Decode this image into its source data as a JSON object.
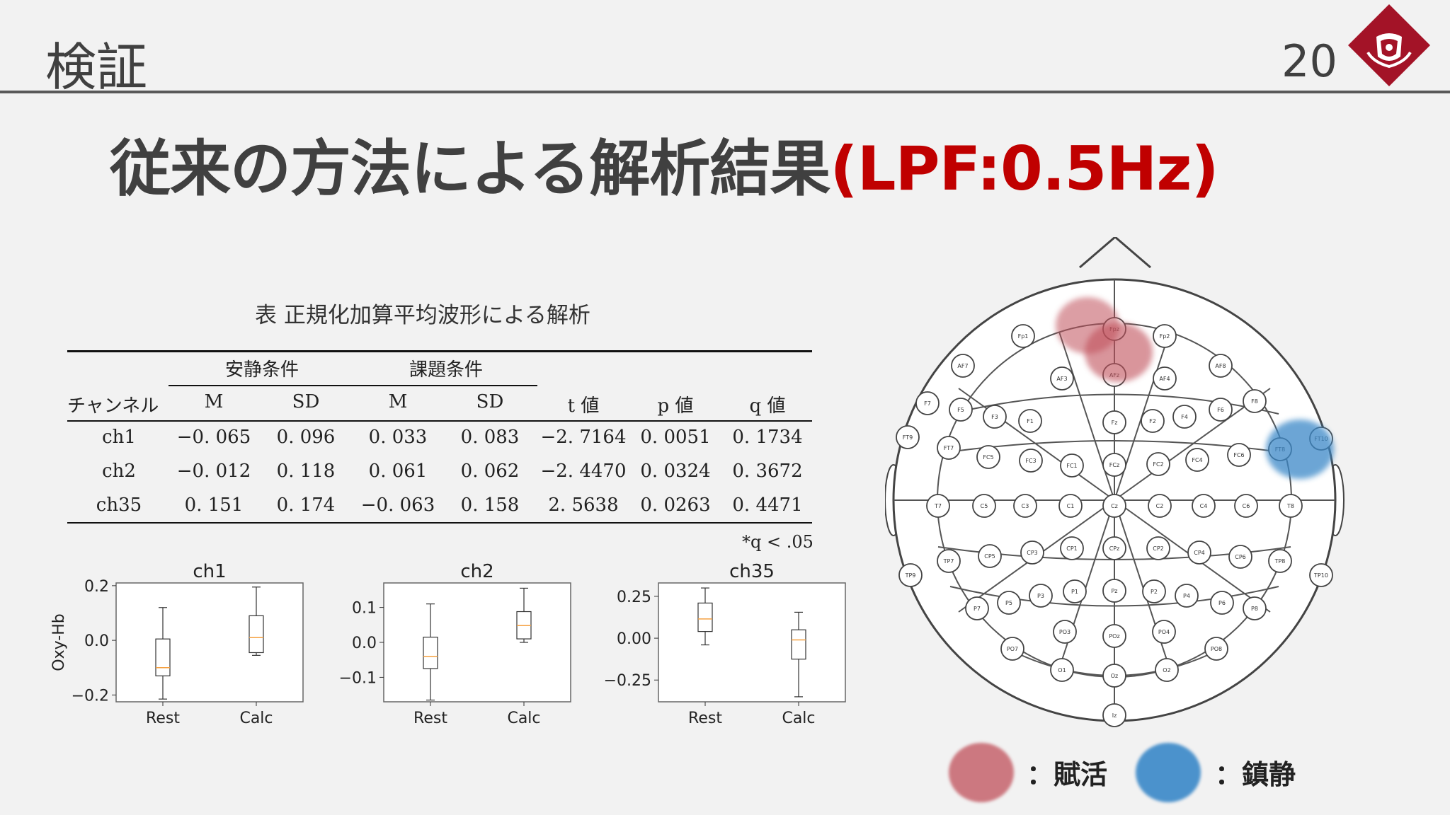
{
  "slide": {
    "section_title": "検証",
    "page_number": "20",
    "title_main": "従来の方法による解析結果",
    "title_accent": "(LPF:0.5Hz)"
  },
  "colors": {
    "accent": "#c00000",
    "logo": "#a31327",
    "activation": "#c0505a",
    "sedation": "#3a88c8"
  },
  "table": {
    "caption": "表 正規化加算平均波形による解析",
    "group_headers": [
      "安静条件",
      "課題条件"
    ],
    "columns": [
      "チャンネル",
      "M",
      "SD",
      "M",
      "SD",
      "t 値",
      "p 値",
      "q 値"
    ],
    "rows": [
      [
        "ch1",
        "−0. 065",
        "0. 096",
        "0. 033",
        "0. 083",
        "−2. 7164",
        "0. 0051",
        "0. 1734"
      ],
      [
        "ch2",
        "−0. 012",
        "0. 118",
        "0. 061",
        "0. 062",
        "−2. 4470",
        "0. 0324",
        "0. 3672"
      ],
      [
        "ch35",
        "0. 151",
        "0. 174",
        "−0. 063",
        "0. 158",
        "2. 5638",
        "0. 0263",
        "0. 4471"
      ]
    ],
    "footnote": "*q < .05"
  },
  "chart_data": [
    {
      "type": "box",
      "title": "ch1",
      "ylabel": "Oxy-Hb",
      "categories": [
        "Rest",
        "Calc"
      ],
      "yticks": [
        "0.2",
        "0.0",
        "−0.2"
      ],
      "ytick_values": [
        0.2,
        0.0,
        -0.2
      ],
      "ylim": [
        -0.225,
        0.21
      ],
      "boxes": [
        {
          "min": -0.215,
          "q1": -0.13,
          "median": -0.1,
          "q3": 0.005,
          "max": 0.12
        },
        {
          "min": -0.055,
          "q1": -0.045,
          "median": 0.01,
          "q3": 0.09,
          "max": 0.195
        }
      ]
    },
    {
      "type": "box",
      "title": "ch2",
      "ylabel": "",
      "categories": [
        "Rest",
        "Calc"
      ],
      "yticks": [
        "0.1",
        "0.0",
        "−0.1"
      ],
      "ytick_values": [
        0.1,
        0.0,
        -0.1
      ],
      "ylim": [
        -0.17,
        0.17
      ],
      "boxes": [
        {
          "min": -0.165,
          "q1": -0.075,
          "median": -0.04,
          "q3": 0.015,
          "max": 0.11
        },
        {
          "min": 0.0,
          "q1": 0.01,
          "median": 0.048,
          "q3": 0.088,
          "max": 0.155
        }
      ]
    },
    {
      "type": "box",
      "title": "ch35",
      "ylabel": "",
      "categories": [
        "Rest",
        "Calc"
      ],
      "yticks": [
        "0.25",
        "0.00",
        "−0.25"
      ],
      "ytick_values": [
        0.25,
        0.0,
        -0.25
      ],
      "ylim": [
        -0.38,
        0.33
      ],
      "boxes": [
        {
          "min": -0.04,
          "q1": 0.04,
          "median": 0.115,
          "q3": 0.21,
          "max": 0.3
        },
        {
          "min": -0.35,
          "q1": -0.125,
          "median": -0.01,
          "q3": 0.05,
          "max": 0.155
        }
      ]
    }
  ],
  "legend": [
    {
      "label": "：賦活",
      "color": "#c0505a"
    },
    {
      "label": "：鎮静",
      "color": "#3a88c8"
    }
  ]
}
